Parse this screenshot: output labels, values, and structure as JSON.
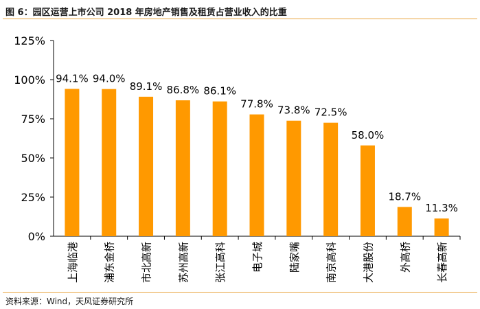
{
  "title": "图 6：园区运营上市公司 2018 年房地产销售及租赁占营业收入的比重",
  "source": "资料来源：Wind，天风证券研究所",
  "colors": {
    "bar": "#FF9900",
    "rule": "#E8A23A",
    "axis": "#000000"
  },
  "chart_data": {
    "type": "bar",
    "categories": [
      "上海临港",
      "浦东金桥",
      "市北高新",
      "苏州高新",
      "张江高科",
      "电子城",
      "陆家嘴",
      "南京高科",
      "大港股份",
      "外高桥",
      "长春高新"
    ],
    "values": [
      94.1,
      94.0,
      89.1,
      86.8,
      86.1,
      77.8,
      73.8,
      72.5,
      58.0,
      18.7,
      11.3
    ],
    "data_labels": [
      "94.1%",
      "94.0%",
      "89.1%",
      "86.8%",
      "86.1%",
      "77.8%",
      "73.8%",
      "72.5%",
      "58.0%",
      "18.7%",
      "11.3%"
    ],
    "yticks": [
      0,
      25,
      50,
      75,
      100,
      125
    ],
    "ytick_labels": [
      "0%",
      "25%",
      "50%",
      "75%",
      "100%",
      "125%"
    ],
    "ylim": [
      0,
      125
    ],
    "xlabel": "",
    "ylabel": "",
    "grid": false,
    "legend": "none"
  }
}
